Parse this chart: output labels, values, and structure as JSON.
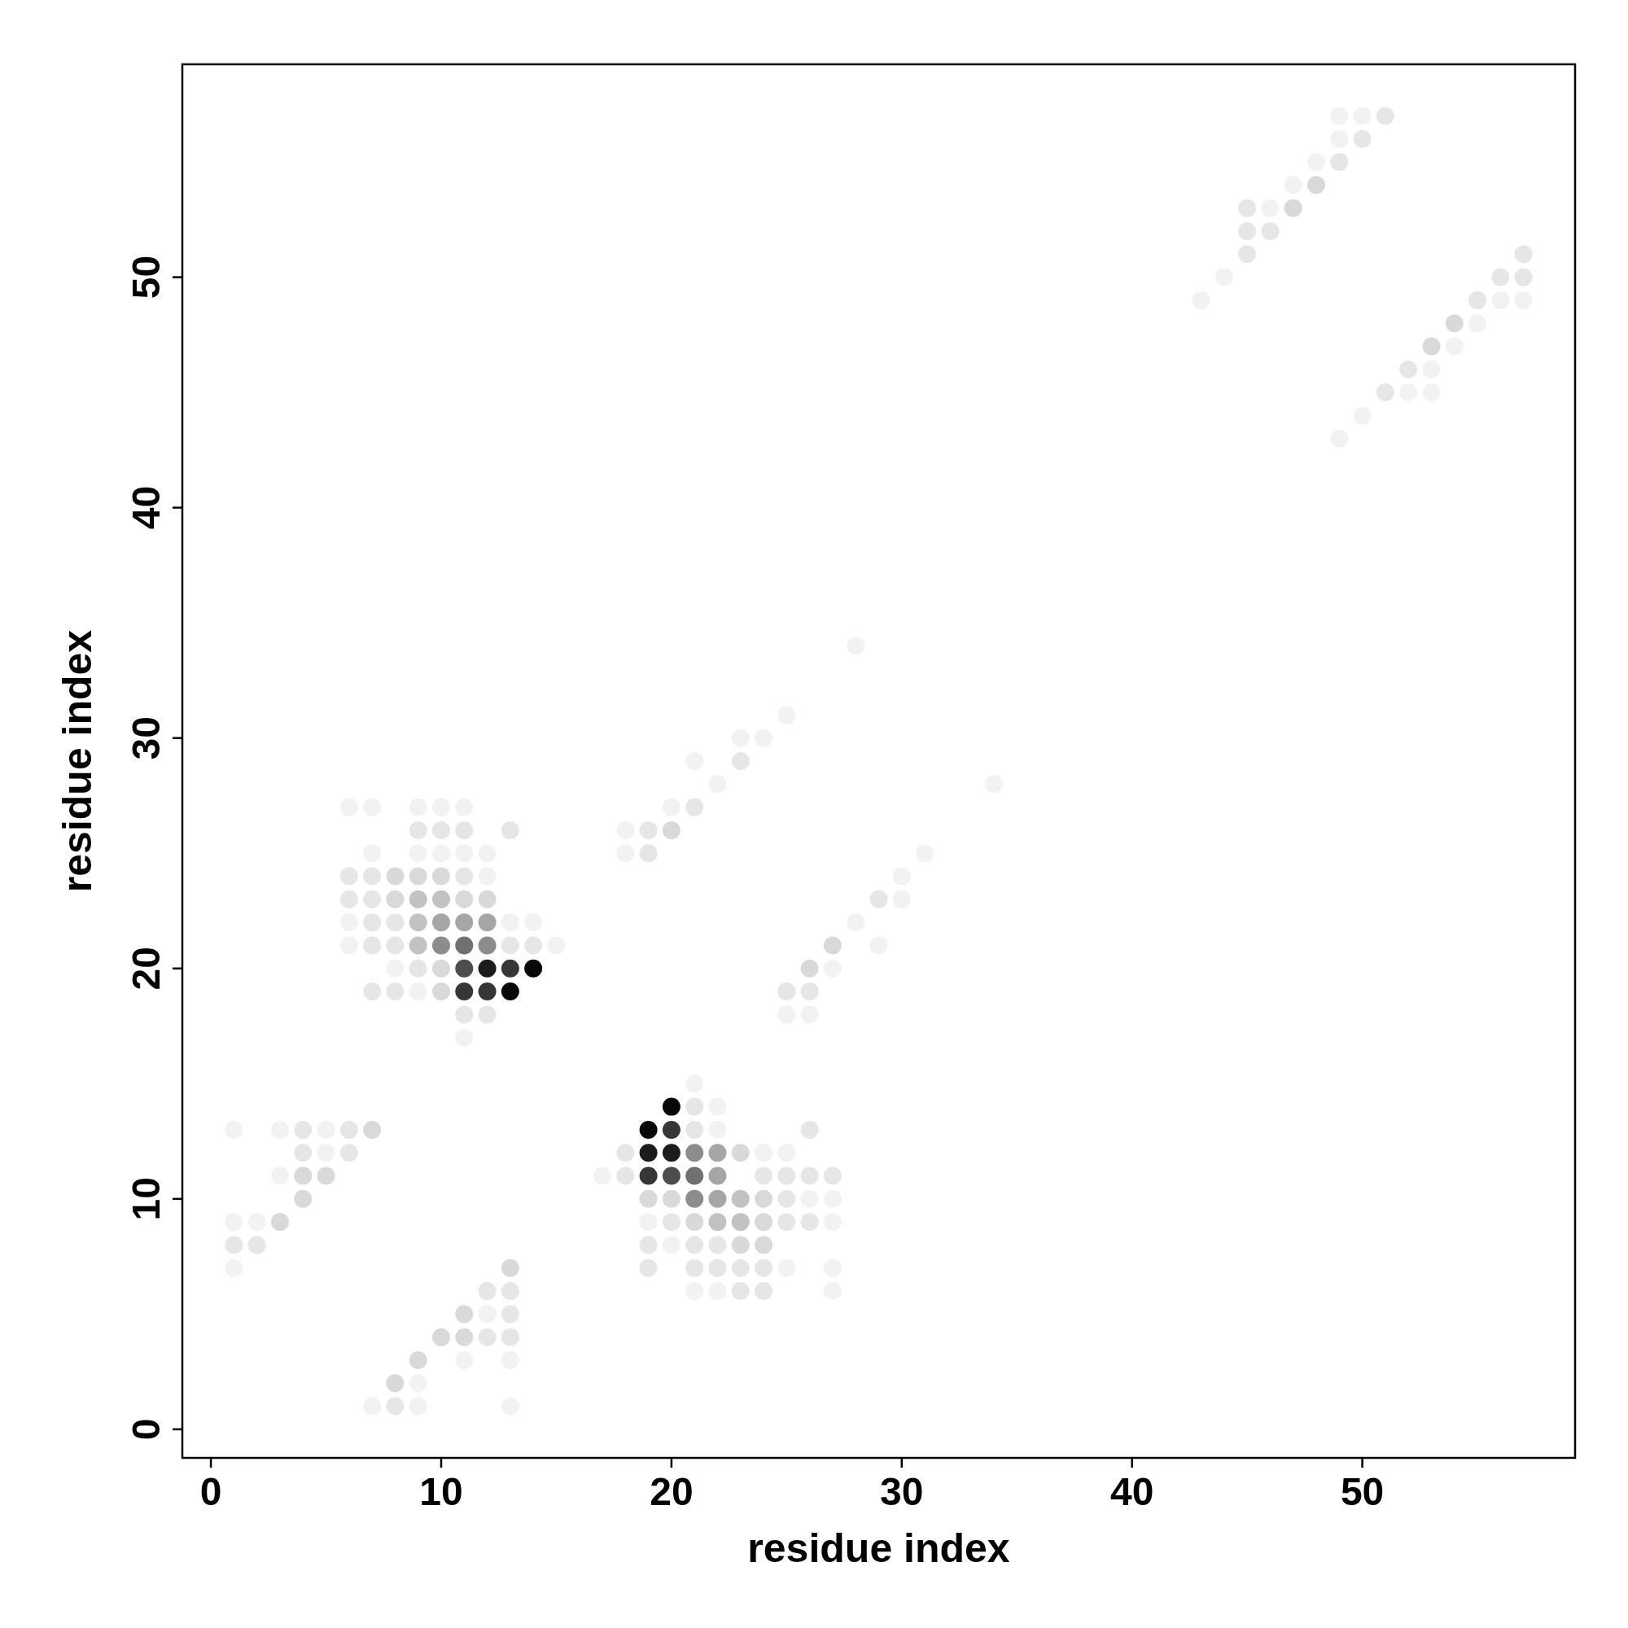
{
  "chart_data": {
    "type": "scatter",
    "xlabel": "residue index",
    "ylabel": "residue index",
    "xlim": [
      -1.24,
      59.24
    ],
    "ylim": [
      -1.24,
      59.24
    ],
    "xticks": [
      0,
      10,
      20,
      30,
      40,
      50
    ],
    "yticks": [
      0,
      10,
      20,
      30,
      40,
      50
    ],
    "marker": "circle",
    "grid": false,
    "series": [
      {
        "color": "#f2f2f2",
        "x": [
          6,
          7,
          9,
          10,
          11,
          7,
          9,
          10,
          11,
          12,
          12,
          6,
          13,
          14,
          6,
          15,
          8,
          9,
          11,
          1,
          3,
          5,
          5,
          3,
          1,
          2,
          1,
          12,
          11,
          13,
          9,
          7,
          9,
          13,
          21,
          22,
          22,
          24,
          25,
          17,
          26,
          27,
          19,
          27,
          20,
          25,
          27,
          21,
          22,
          27,
          25,
          23,
          24,
          21,
          22,
          34,
          20,
          18,
          18,
          31,
          30,
          30,
          28,
          29,
          27,
          25,
          26,
          28,
          49,
          50,
          49,
          48,
          47,
          46,
          44,
          43,
          56,
          57,
          55,
          54,
          53,
          52,
          53,
          50,
          49
        ],
        "values": [
          27,
          27,
          27,
          27,
          27,
          25,
          25,
          25,
          25,
          25,
          24,
          22,
          22,
          22,
          21,
          21,
          20,
          19,
          17,
          13,
          13,
          13,
          12,
          11,
          9,
          9,
          7,
          5,
          3,
          3,
          2,
          1,
          1,
          1,
          15,
          14,
          13,
          12,
          12,
          11,
          10,
          10,
          9,
          9,
          8,
          7,
          7,
          6,
          6,
          6,
          31,
          30,
          30,
          29,
          28,
          28,
          27,
          26,
          25,
          25,
          24,
          23,
          22,
          21,
          20,
          18,
          18,
          34,
          57,
          57,
          56,
          55,
          54,
          53,
          50,
          49,
          49,
          49,
          48,
          47,
          46,
          45,
          45,
          44,
          43
        ]
      },
      {
        "color": "#e6e6e6",
        "x": [
          9,
          10,
          11,
          13,
          6,
          7,
          11,
          6,
          7,
          7,
          8,
          7,
          8,
          13,
          14,
          9,
          7,
          8,
          11,
          12,
          4,
          6,
          4,
          6,
          1,
          2,
          12,
          13,
          13,
          12,
          13,
          8,
          21,
          21,
          26,
          18,
          18,
          24,
          25,
          26,
          27,
          25,
          20,
          25,
          26,
          19,
          21,
          22,
          19,
          21,
          22,
          23,
          24,
          23,
          24,
          23,
          21,
          19,
          19,
          29,
          25,
          26,
          51,
          50,
          49,
          45,
          45,
          46,
          45,
          57,
          56,
          57,
          55,
          52,
          51
        ],
        "values": [
          26,
          26,
          26,
          26,
          24,
          24,
          24,
          23,
          23,
          22,
          22,
          21,
          21,
          21,
          21,
          20,
          19,
          19,
          18,
          18,
          13,
          13,
          12,
          12,
          8,
          8,
          6,
          6,
          5,
          4,
          4,
          1,
          14,
          13,
          13,
          12,
          11,
          11,
          11,
          11,
          11,
          10,
          9,
          9,
          9,
          8,
          8,
          8,
          7,
          7,
          7,
          7,
          7,
          6,
          6,
          29,
          27,
          26,
          25,
          23,
          19,
          19,
          57,
          56,
          55,
          53,
          52,
          52,
          51,
          51,
          50,
          50,
          49,
          46,
          45
        ]
      },
      {
        "color": "#d9d9d9",
        "x": [
          8,
          9,
          10,
          8,
          11,
          12,
          10,
          10,
          7,
          4,
          5,
          4,
          3,
          13,
          11,
          10,
          11,
          9,
          8,
          23,
          19,
          20,
          24,
          21,
          24,
          23,
          24,
          20,
          27,
          26,
          48,
          47,
          54,
          53
        ],
        "values": [
          24,
          24,
          24,
          23,
          23,
          23,
          20,
          19,
          13,
          11,
          11,
          10,
          9,
          7,
          5,
          4,
          4,
          3,
          2,
          12,
          10,
          10,
          10,
          9,
          9,
          8,
          8,
          26,
          21,
          20,
          54,
          53,
          48,
          47
        ]
      },
      {
        "color": "#c2c2c2",
        "x": [
          9,
          10,
          9,
          9,
          23,
          22,
          23
        ],
        "values": [
          23,
          23,
          22,
          21,
          10,
          9,
          9
        ]
      },
      {
        "color": "#a6a6a6",
        "x": [
          10,
          11,
          12,
          22,
          22,
          22
        ],
        "values": [
          22,
          22,
          22,
          12,
          11,
          10
        ]
      },
      {
        "color": "#8c8c8c",
        "x": [
          10,
          12,
          21,
          21
        ],
        "values": [
          21,
          21,
          12,
          10
        ]
      },
      {
        "color": "#707070",
        "x": [
          11,
          21
        ],
        "values": [
          21,
          11
        ]
      },
      {
        "color": "#4d4d4d",
        "x": [
          11,
          20
        ],
        "values": [
          20,
          11
        ]
      },
      {
        "color": "#363636",
        "x": [
          13,
          11,
          12,
          20,
          19
        ],
        "values": [
          20,
          19,
          19,
          13,
          11
        ]
      },
      {
        "color": "#1c1c1c",
        "x": [
          12,
          19,
          20
        ],
        "values": [
          20,
          12,
          12
        ]
      },
      {
        "color": "#080808",
        "x": [
          14,
          13,
          20,
          19
        ],
        "values": [
          20,
          19,
          14,
          13
        ]
      }
    ]
  }
}
